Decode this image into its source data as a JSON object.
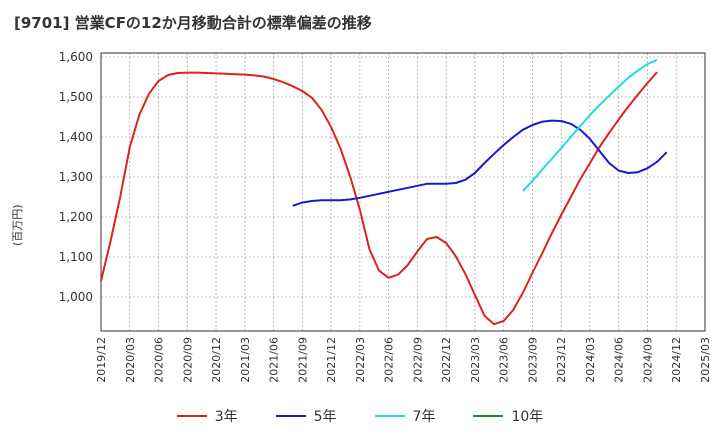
{
  "chart_data": {
    "type": "line",
    "title": "[9701]  営業CFの12か月移動合計の標準偏差の推移",
    "ylabel": "(百万円)",
    "xlabel": "",
    "ylim": [
      915,
      1610
    ],
    "yticks": [
      1000,
      1100,
      1200,
      1300,
      1400,
      1500,
      1600
    ],
    "ytick_labels": [
      "1,000",
      "1,100",
      "1,200",
      "1,300",
      "1,400",
      "1,500",
      "1,600"
    ],
    "xticks": [
      "2019/12",
      "2020/03",
      "2020/06",
      "2020/09",
      "2020/12",
      "2021/03",
      "2021/06",
      "2021/09",
      "2021/12",
      "2022/03",
      "2022/06",
      "2022/09",
      "2022/12",
      "2023/03",
      "2023/06",
      "2023/09",
      "2023/12",
      "2024/03",
      "2024/06",
      "2024/09",
      "2024/12",
      "2025/03"
    ],
    "grid": true,
    "legend_position": "bottom",
    "series": [
      {
        "name": "3年",
        "color": "#dd2222",
        "start": "2019/12",
        "values": [
          1040,
          1140,
          1250,
          1375,
          1455,
          1508,
          1540,
          1555,
          1560,
          1561,
          1561,
          1560,
          1559,
          1558,
          1557,
          1556,
          1554,
          1551,
          1545,
          1537,
          1527,
          1515,
          1498,
          1468,
          1425,
          1370,
          1300,
          1218,
          1120,
          1066,
          1048,
          1056,
          1080,
          1114,
          1145,
          1150,
          1135,
          1102,
          1058,
          1005,
          953,
          932,
          940,
          968,
          1010,
          1060,
          1108,
          1158,
          1205,
          1250,
          1295,
          1335,
          1375,
          1410,
          1444,
          1476,
          1506,
          1535,
          1562
        ]
      },
      {
        "name": "5年",
        "color": "#1a1acc",
        "start": "2021/08",
        "values": [
          1228,
          1236,
          1240,
          1242,
          1242,
          1242,
          1244,
          1248,
          1253,
          1258,
          1263,
          1268,
          1273,
          1278,
          1283,
          1283,
          1283,
          1285,
          1293,
          1310,
          1335,
          1358,
          1380,
          1400,
          1418,
          1430,
          1438,
          1441,
          1440,
          1433,
          1418,
          1395,
          1365,
          1335,
          1316,
          1310,
          1312,
          1322,
          1338,
          1362
        ]
      },
      {
        "name": "7年",
        "color": "#22dddd",
        "start": "2023/08",
        "values": [
          1265,
          1290,
          1318,
          1345,
          1372,
          1400,
          1428,
          1455,
          1480,
          1503,
          1526,
          1548,
          1566,
          1582,
          1593
        ]
      },
      {
        "name": "10年",
        "color": "#228822",
        "start": "2024/10",
        "values": []
      }
    ]
  }
}
